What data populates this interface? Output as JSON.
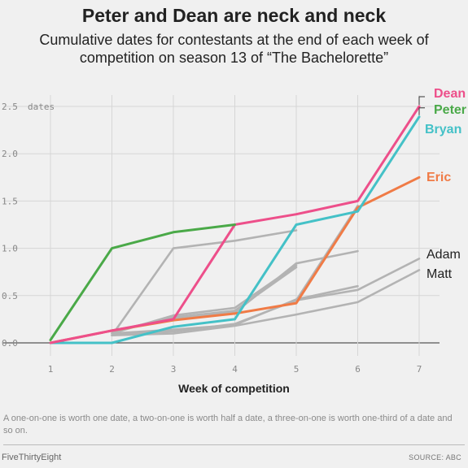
{
  "title": "Peter and Dean are neck and neck",
  "subtitle": "Cumulative dates for contestants at the end of each week of competition on season 13 of “The Bachelorette”",
  "note": "A one-on-one is worth one date, a two-on-one is worth half a date, a three-on-one is worth one-third of a date and so on.",
  "brand": "FiveThirtyEight",
  "source": "SOURCE: ABC",
  "chart_data": {
    "type": "line",
    "xlabel": "Week of competition",
    "ylabel": "dates",
    "x": [
      1,
      2,
      3,
      4,
      5,
      6,
      7
    ],
    "xlim": [
      1,
      7
    ],
    "ylim": [
      0,
      2.5
    ],
    "y_ticks": [
      "0.0",
      "0.5",
      "1.0",
      "1.5",
      "2.0",
      "2.5"
    ],
    "x_ticks": [
      "1",
      "2",
      "3",
      "4",
      "5",
      "6",
      "7"
    ],
    "grid": true,
    "highlight_colors": {
      "Dean": "#ed4f8a",
      "Peter": "#4aa948",
      "Bryan": "#44c1c7",
      "Eric": "#f07b46",
      "other": "#b3b3b3"
    },
    "series": [
      {
        "name": "",
        "color": "#b3b3b3",
        "x": [
          2,
          3,
          4,
          5
        ],
        "values": [
          0.08,
          1.0,
          1.08,
          1.19
        ]
      },
      {
        "name": "",
        "color": "#b3b3b3",
        "x": [
          2,
          3,
          4,
          5
        ],
        "values": [
          0.1,
          0.29,
          0.37,
          0.82
        ]
      },
      {
        "name": "",
        "color": "#b3b3b3",
        "x": [
          2,
          3,
          4,
          5
        ],
        "values": [
          0.12,
          0.27,
          0.34,
          0.8
        ]
      },
      {
        "name": "",
        "color": "#b3b3b3",
        "x": [
          3,
          4,
          5,
          6
        ],
        "values": [
          0.25,
          0.32,
          0.84,
          0.97
        ]
      },
      {
        "name": "",
        "color": "#b3b3b3",
        "x": [
          5,
          6
        ],
        "values": [
          0.45,
          1.45
        ]
      },
      {
        "name": "",
        "color": "#b3b3b3",
        "x": [
          2,
          3,
          4,
          5,
          6
        ],
        "values": [
          0.1,
          0.14,
          0.19,
          0.46,
          0.6
        ]
      },
      {
        "name": "Adam",
        "color": "#b3b3b3",
        "x": [
          2,
          3,
          4,
          5,
          6,
          7
        ],
        "values": [
          0.1,
          0.12,
          0.2,
          0.45,
          0.56,
          0.89
        ]
      },
      {
        "name": "Matt",
        "color": "#b3b3b3",
        "x": [
          2,
          3,
          4,
          5,
          6,
          7
        ],
        "values": [
          0.08,
          0.1,
          0.18,
          0.3,
          0.43,
          0.77
        ]
      },
      {
        "name": "Eric",
        "color": "#f07b46",
        "x": [
          1,
          2,
          3,
          4,
          5,
          6,
          7
        ],
        "values": [
          0.0,
          0.13,
          0.24,
          0.31,
          0.42,
          1.43,
          1.75
        ]
      },
      {
        "name": "Bryan",
        "color": "#44c1c7",
        "x": [
          1,
          2,
          3,
          4,
          5,
          6,
          7
        ],
        "values": [
          0.0,
          0.0,
          0.17,
          0.25,
          1.25,
          1.39,
          2.39
        ]
      },
      {
        "name": "Dean",
        "color": "#ed4f8a",
        "x": [
          1,
          2,
          3,
          4,
          5,
          6,
          7
        ],
        "values": [
          0.0,
          0.13,
          0.25,
          1.25,
          1.36,
          1.5,
          2.5
        ]
      },
      {
        "name": "Peter",
        "color": "#4aa948",
        "x": [
          1,
          2,
          3,
          4
        ],
        "values": [
          0.03,
          1.0,
          1.17,
          1.25
        ]
      }
    ],
    "labels": [
      {
        "text": "Dean",
        "color": "#ed4f8a",
        "bold": true
      },
      {
        "text": "Peter",
        "color": "#4aa948",
        "bold": true
      },
      {
        "text": "Bryan",
        "color": "#44c1c7",
        "bold": true
      },
      {
        "text": "Eric",
        "color": "#f07b46",
        "bold": true
      },
      {
        "text": "Adam",
        "color": "#222222",
        "bold": false
      },
      {
        "text": "Matt",
        "color": "#222222",
        "bold": false
      }
    ]
  }
}
